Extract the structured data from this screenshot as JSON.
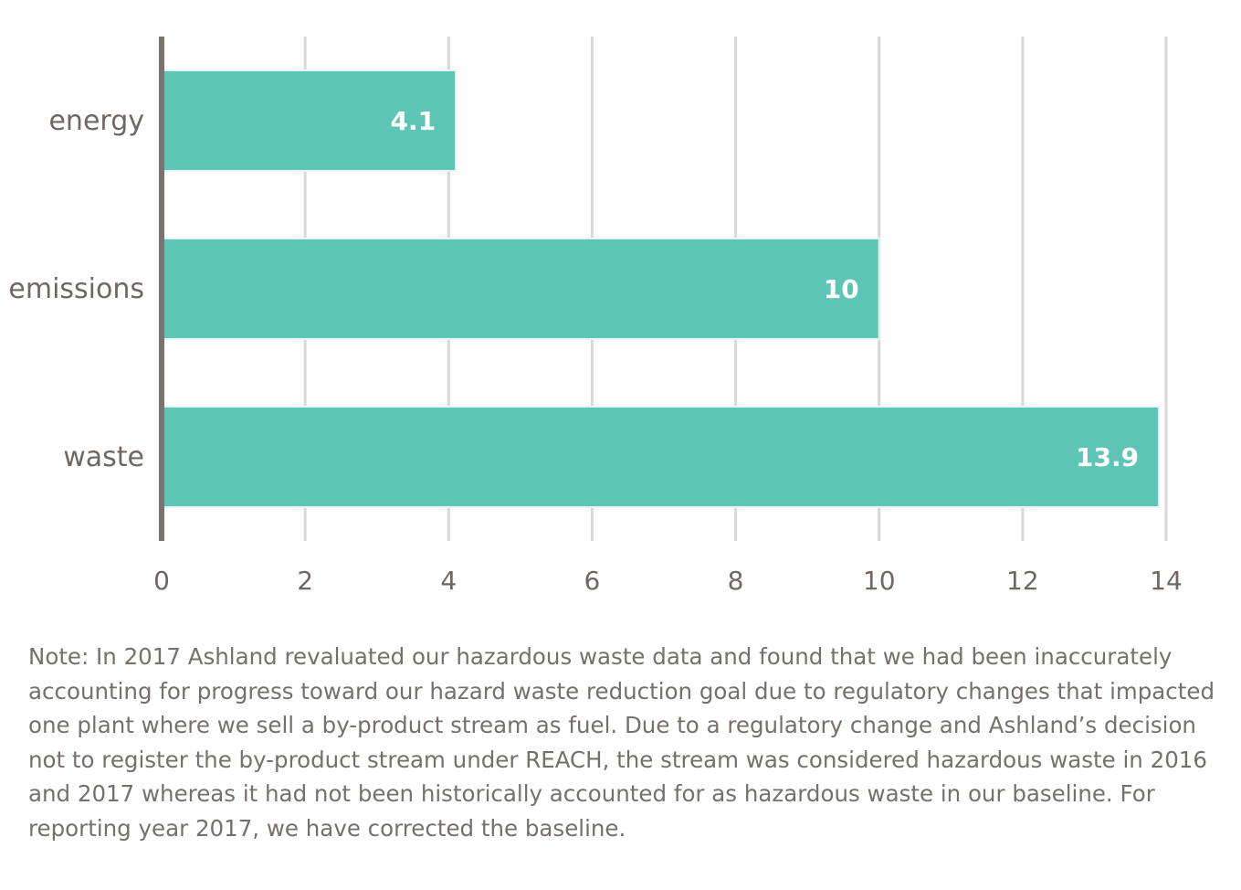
{
  "chart_data": {
    "type": "bar",
    "orientation": "horizontal",
    "categories": [
      "energy",
      "emissions",
      "waste"
    ],
    "values": [
      4.1,
      10,
      13.9
    ],
    "data_labels": [
      "4.1",
      "10",
      "13.9"
    ],
    "xlim": [
      0,
      14
    ],
    "x_ticks": [
      0,
      2,
      4,
      6,
      8,
      10,
      12,
      14
    ],
    "title": "",
    "xlabel": "",
    "ylabel": "",
    "grid": "vertical",
    "legend": "none",
    "colors": {
      "bar": "#5cc5b6",
      "axis": "#7d7370",
      "grid": "#d9d7d7",
      "text": "#6f6764"
    }
  },
  "note": "Note: In 2017 Ashland revaluated our hazardous waste data and found that we had been inaccurately accounting for progress toward our hazard waste reduction goal due to regulatory changes that impacted one plant where we sell a by-product stream as fuel. Due to a regulatory change and Ashland’s decision not to register the by-product stream under REACH, the stream was considered hazardous waste in 2016 and 2017 whereas it had not been historically accounted for as hazardous waste in our baseline. For reporting year 2017, we have corrected the baseline."
}
